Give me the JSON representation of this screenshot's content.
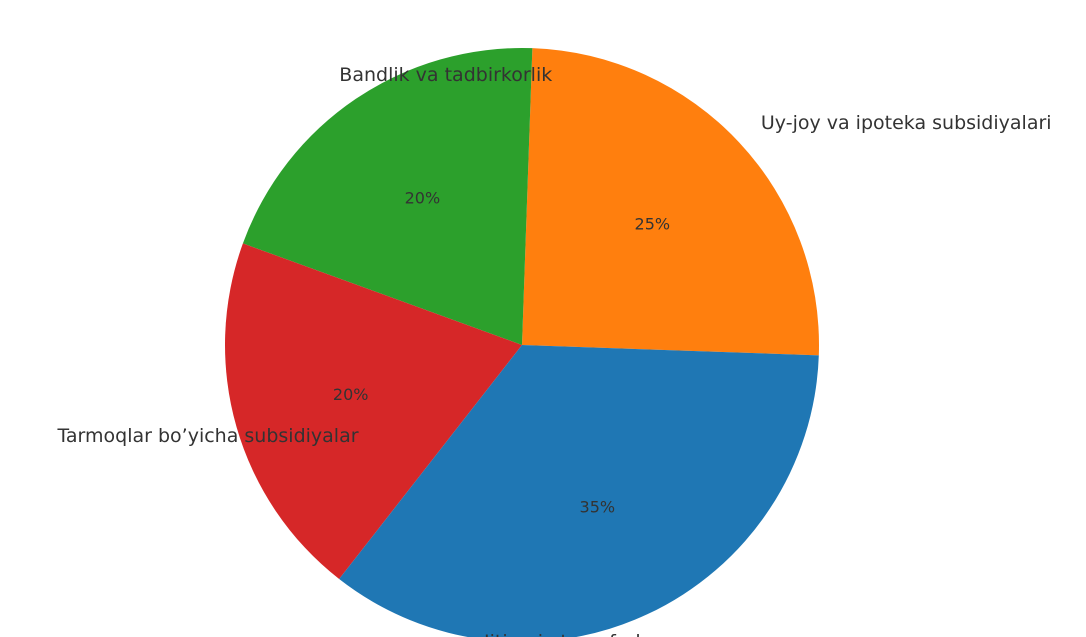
{
  "chart_data": {
    "type": "pie",
    "slices": [
      {
        "label": "Uy-joy va ipoteka subsidiyalari",
        "value": 25,
        "pct_label": "25%",
        "color": "#ff7f0e"
      },
      {
        "label": "Bandlik va tadbirkorlik",
        "value": 20,
        "pct_label": "20%",
        "color": "#2ca02c"
      },
      {
        "label": "Tarmoqlar bo’yicha subsidiyalar",
        "value": 20,
        "pct_label": "20%",
        "color": "#d62728"
      },
      {
        "label": "Ijtimoiy transferlar",
        "value": 35,
        "pct_label": "35%",
        "color": "#1f77b4"
      }
    ]
  }
}
